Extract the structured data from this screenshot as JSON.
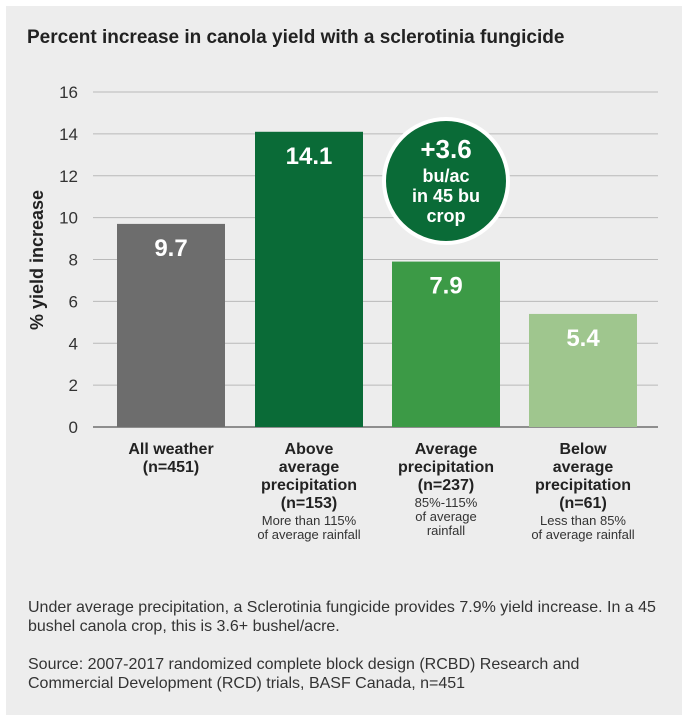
{
  "title": "Percent increase in canola yield with a sclerotinia fungicide",
  "chart_data": {
    "type": "bar",
    "ylabel": "% yield increase",
    "ylim": [
      0,
      16
    ],
    "yticks": [
      0,
      2,
      4,
      6,
      8,
      10,
      12,
      14,
      16
    ],
    "grid": true,
    "categories": [
      "All weather (n=451)",
      "Above average precipitation (n=153)",
      "Average precipitation (n=237)",
      "Below average precipitation (n=61)"
    ],
    "values": [
      9.7,
      14.1,
      7.9,
      5.4
    ],
    "data_labels": [
      "9.7",
      "14.1",
      "7.9",
      "5.4"
    ],
    "colors": [
      "#6d6d6d",
      "#0a6b37",
      "#3c9a46",
      "#9fc68e"
    ],
    "category_labels": [
      {
        "bold": [
          "All weather",
          "(n=451)"
        ],
        "note": []
      },
      {
        "bold": [
          "Above",
          "average",
          "precipitation",
          "(n=153)"
        ],
        "note": [
          "More than 115%",
          "of average rainfall"
        ]
      },
      {
        "bold": [
          "Average",
          "precipitation",
          "(n=237)"
        ],
        "note": [
          "85%-115%",
          "of average",
          "rainfall"
        ]
      },
      {
        "bold": [
          "Below",
          "average",
          "precipitation",
          "(n=61)"
        ],
        "note": [
          "Less than 85%",
          "of average rainfall"
        ]
      }
    ],
    "annotation": {
      "lines": [
        "+3.6",
        "bu/ac",
        "in 45 bu",
        "crop"
      ],
      "color": "#0a6b37"
    }
  },
  "captions": {
    "summary": "Under average precipitation, a Sclerotinia fungicide provides 7.9% yield increase. In a 45 bushel canola crop, this is 3.6+ bushel/acre.",
    "source": "Source: 2007-2017 randomized complete block design (RCBD) Research and Commercial Development (RCD) trials, BASF Canada, n=451"
  }
}
